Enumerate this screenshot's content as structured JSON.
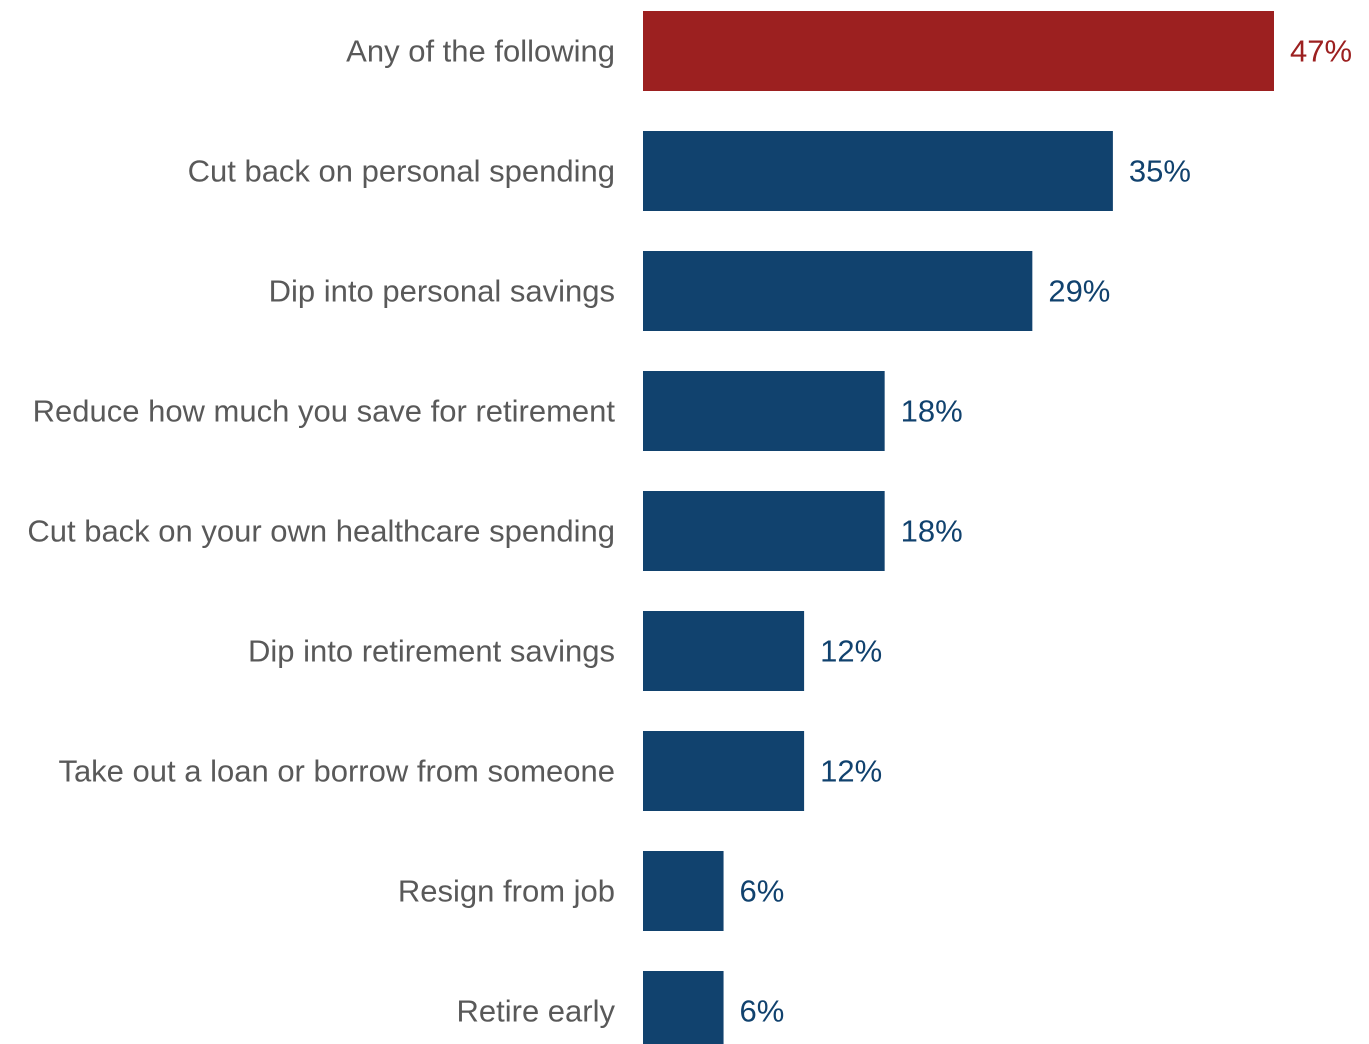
{
  "chart_data": {
    "type": "bar",
    "orientation": "horizontal",
    "categories": [
      "Any of the following",
      "Cut back on personal spending",
      "Dip into personal savings",
      "Reduce how much you save for retirement",
      "Cut back on your own healthcare spending",
      "Dip into retirement savings",
      "Take out a loan or borrow from someone",
      "Resign from job",
      "Retire early"
    ],
    "values": [
      47,
      35,
      29,
      18,
      18,
      12,
      12,
      6,
      6
    ],
    "value_labels": [
      "47%",
      "35%",
      "29%",
      "18%",
      "18%",
      "12%",
      "12%",
      "6%",
      "6%"
    ],
    "unit": "%",
    "title": "",
    "xlabel": "",
    "ylabel": "",
    "xlim": [
      0,
      47
    ],
    "grid": false,
    "legend": "none",
    "colors": {
      "highlight": "#9c2020",
      "default": "#11426e",
      "category_label": "#595959"
    },
    "highlight_index": 0
  }
}
